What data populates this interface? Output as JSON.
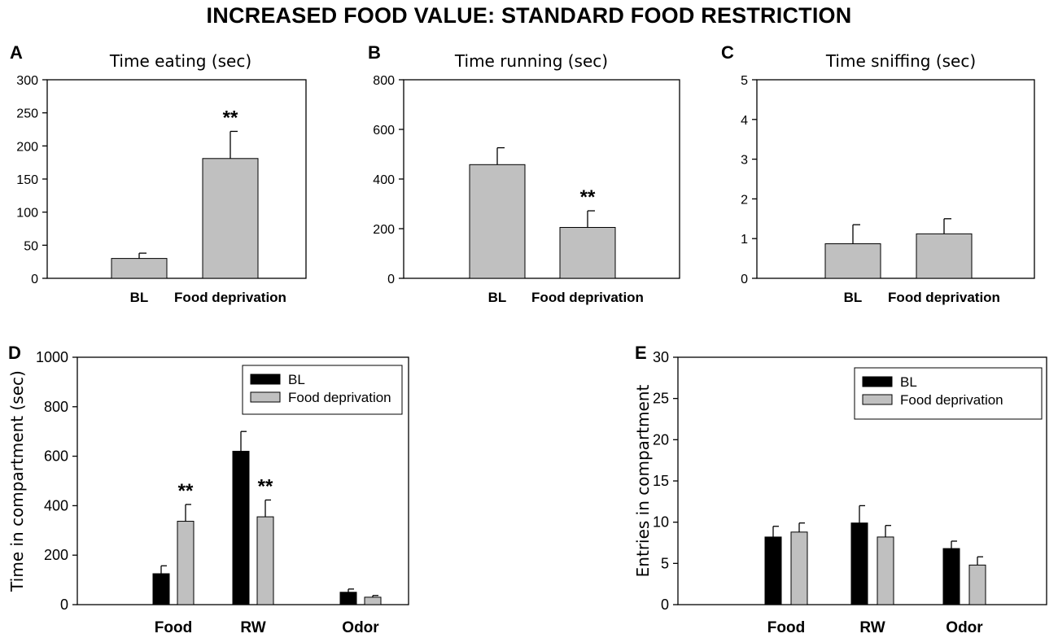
{
  "figure_title": "INCREASED FOOD VALUE: STANDARD FOOD RESTRICTION",
  "colors": {
    "bl": "#000000",
    "food_deprivation": "#c0c0c0",
    "axis": "#000000"
  },
  "chart_data": [
    {
      "panel": "A",
      "type": "bar",
      "title": "Time  eating (sec)",
      "categories": [
        "BL",
        "Food deprivation"
      ],
      "values": [
        30,
        181
      ],
      "errors": [
        8,
        41
      ],
      "significance": [
        "",
        "**"
      ],
      "ylim": [
        0,
        300
      ],
      "yticks": [
        0,
        50,
        100,
        150,
        200,
        250,
        300
      ],
      "xlabel": "",
      "ylabel": ""
    },
    {
      "panel": "B",
      "type": "bar",
      "title": "Time running (sec)",
      "categories": [
        "BL",
        "Food deprivation"
      ],
      "values": [
        458,
        205
      ],
      "errors": [
        68,
        67
      ],
      "significance": [
        "",
        "**"
      ],
      "ylim": [
        0,
        800
      ],
      "yticks": [
        0,
        200,
        400,
        600,
        800
      ],
      "xlabel": "",
      "ylabel": ""
    },
    {
      "panel": "C",
      "type": "bar",
      "title": "Time sniffing (sec)",
      "categories": [
        "BL",
        "Food deprivation"
      ],
      "values": [
        0.87,
        1.12
      ],
      "errors": [
        0.48,
        0.38
      ],
      "significance": [
        "",
        ""
      ],
      "ylim": [
        0,
        5
      ],
      "yticks": [
        0,
        1,
        2,
        3,
        4,
        5
      ],
      "xlabel": "",
      "ylabel": ""
    },
    {
      "panel": "D",
      "type": "bar",
      "title": "",
      "categories": [
        "Food",
        "RW",
        "Odor"
      ],
      "series": [
        {
          "name": "BL",
          "values": [
            125,
            620,
            50
          ],
          "errors": [
            32,
            80,
            13
          ],
          "significance": [
            "",
            "",
            ""
          ]
        },
        {
          "name": "Food deprivation",
          "values": [
            337,
            355,
            30
          ],
          "errors": [
            68,
            68,
            7
          ],
          "significance": [
            "**",
            "**",
            ""
          ]
        }
      ],
      "ylim": [
        0,
        1000
      ],
      "yticks": [
        0,
        200,
        400,
        600,
        800,
        1000
      ],
      "xlabel": "",
      "ylabel": "Time in compartment (sec)",
      "legend": "top-right"
    },
    {
      "panel": "E",
      "type": "bar",
      "title": "",
      "categories": [
        "Food",
        "RW",
        "Odor"
      ],
      "series": [
        {
          "name": "BL",
          "values": [
            8.2,
            9.9,
            6.8
          ],
          "errors": [
            1.3,
            2.1,
            0.9
          ],
          "significance": [
            "",
            "",
            ""
          ]
        },
        {
          "name": "Food deprivation",
          "values": [
            8.8,
            8.2,
            4.8
          ],
          "errors": [
            1.1,
            1.4,
            1.0
          ],
          "significance": [
            "",
            "",
            ""
          ]
        }
      ],
      "ylim": [
        0,
        30
      ],
      "yticks": [
        0,
        5,
        10,
        15,
        20,
        25,
        30
      ],
      "xlabel": "",
      "ylabel": "Entries in compartment",
      "legend": "top-right"
    }
  ]
}
